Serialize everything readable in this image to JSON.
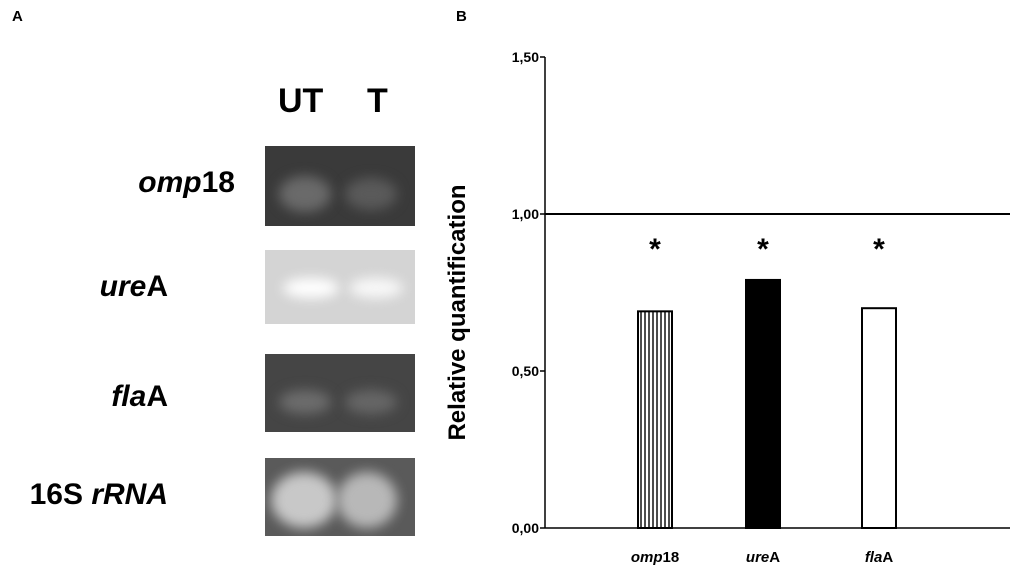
{
  "panels": {
    "a": "A",
    "b": "B"
  },
  "gel": {
    "lanes": [
      "UT",
      "T"
    ],
    "rows": [
      {
        "gene_italic": "omp",
        "gene_plain": "18",
        "style": "dark"
      },
      {
        "gene_italic": "ure",
        "gene_plain": "A",
        "style": "light"
      },
      {
        "gene_italic": "fla",
        "gene_plain": "A",
        "style": "dark"
      },
      {
        "gene_plain_prefix": "16S ",
        "gene_italic": "rRNA",
        "style": "bright"
      }
    ]
  },
  "chart_data": {
    "type": "bar",
    "ylabel": "Relative quantification",
    "ylim": [
      0,
      1.5
    ],
    "yticks": [
      "0,00",
      "0,50",
      "1,00",
      "1,50"
    ],
    "reference_line": 1.0,
    "categories": [
      {
        "italic": "omp",
        "plain": "18"
      },
      {
        "italic": "ure",
        "plain": "A"
      },
      {
        "italic": "fla",
        "plain": "A"
      }
    ],
    "values": [
      0.69,
      0.79,
      0.7
    ],
    "fills": [
      "vertical-stripes",
      "#000000",
      "#ffffff"
    ],
    "significance": [
      "*",
      "*",
      "*"
    ],
    "grid": false
  }
}
